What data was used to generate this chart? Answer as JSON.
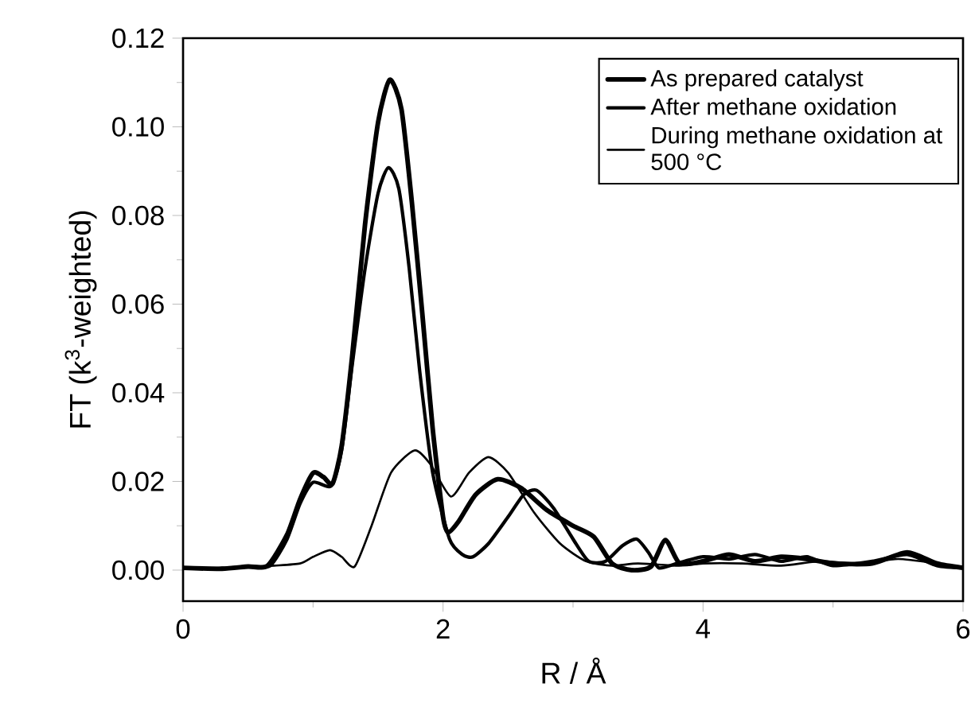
{
  "chart_data": {
    "type": "line",
    "xlabel": "R / Å",
    "ylabel": "FT (k$^{3}$-weighted)",
    "xlim": [
      0,
      6
    ],
    "ylim": [
      -0.007,
      0.12
    ],
    "xticks": [
      0,
      2,
      4,
      6
    ],
    "yticks": [
      {
        "value": 0,
        "label": "0.00"
      },
      {
        "value": 0.02,
        "label": "0.02"
      },
      {
        "value": 0.04,
        "label": "0.04"
      },
      {
        "value": 0.06,
        "label": "0.06"
      },
      {
        "value": 0.08,
        "label": "0.08"
      },
      {
        "value": 0.1,
        "label": "0.10"
      },
      {
        "value": 0.12,
        "label": "0.12"
      }
    ],
    "legend": "top right",
    "series": [
      {
        "name": "As prepared catalyst",
        "color": "#000000",
        "x": [
          0,
          0.3,
          0.5,
          0.65,
          0.8,
          0.9,
          1.0,
          1.08,
          1.15,
          1.22,
          1.3,
          1.4,
          1.5,
          1.59,
          1.68,
          1.76,
          1.84,
          1.92,
          2.0,
          2.04,
          2.12,
          2.25,
          2.42,
          2.6,
          2.8,
          3.0,
          3.16,
          3.3,
          3.45,
          3.6,
          3.71,
          3.82,
          4.0,
          4.2,
          4.4,
          4.6,
          4.8,
          5.0,
          5.3,
          5.57,
          5.8,
          6
        ],
        "values": [
          0.0005,
          0.0003,
          0.0008,
          0.001,
          0.008,
          0.016,
          0.0219,
          0.021,
          0.0195,
          0.028,
          0.048,
          0.078,
          0.101,
          0.1106,
          0.104,
          0.083,
          0.058,
          0.032,
          0.012,
          0.0085,
          0.011,
          0.017,
          0.0205,
          0.0185,
          0.0135,
          0.01,
          0.0075,
          0.0015,
          0.0,
          0.0008,
          0.0068,
          0.0015,
          0.002,
          0.0035,
          0.002,
          0.003,
          0.0025,
          0.0015,
          0.0015,
          0.004,
          0.0015,
          0.0005
        ]
      },
      {
        "name": "After methane oxidation",
        "color": "#000000",
        "x": [
          0,
          0.3,
          0.5,
          0.67,
          0.8,
          0.9,
          1.0,
          1.14,
          1.22,
          1.3,
          1.4,
          1.5,
          1.58,
          1.66,
          1.74,
          1.82,
          1.92,
          2.05,
          2.15,
          2.23,
          2.35,
          2.5,
          2.62,
          2.72,
          2.85,
          3.0,
          3.12,
          3.25,
          3.38,
          3.49,
          3.58,
          3.66,
          3.8,
          4.0,
          4.2,
          4.4,
          4.6,
          4.8,
          5.0,
          5.3,
          5.57,
          5.8,
          6
        ],
        "values": [
          0.0005,
          0.0004,
          0.0008,
          0.001,
          0.007,
          0.015,
          0.0198,
          0.019,
          0.027,
          0.046,
          0.068,
          0.085,
          0.0908,
          0.086,
          0.068,
          0.045,
          0.022,
          0.007,
          0.0035,
          0.003,
          0.006,
          0.012,
          0.017,
          0.018,
          0.014,
          0.007,
          0.002,
          0.002,
          0.0055,
          0.007,
          0.004,
          0.0005,
          0.0015,
          0.003,
          0.0025,
          0.0035,
          0.002,
          0.003,
          0.001,
          0.002,
          0.0035,
          0.001,
          0.0005
        ]
      },
      {
        "name": "During methane oxidation at 500 °C",
        "color": "#000000",
        "x": [
          0,
          0.4,
          0.7,
          0.9,
          1.0,
          1.13,
          1.22,
          1.32,
          1.45,
          1.6,
          1.78,
          1.9,
          2.06,
          2.2,
          2.35,
          2.5,
          2.7,
          2.9,
          3.1,
          3.3,
          3.5,
          3.8,
          4.0,
          4.3,
          4.6,
          4.9,
          5.2,
          5.5,
          5.8,
          6
        ],
        "values": [
          0.0005,
          0.0005,
          0.001,
          0.0015,
          0.003,
          0.0045,
          0.003,
          0.0008,
          0.01,
          0.022,
          0.027,
          0.024,
          0.0166,
          0.022,
          0.0255,
          0.022,
          0.013,
          0.006,
          0.002,
          0.001,
          0.0015,
          0.001,
          0.0015,
          0.0015,
          0.001,
          0.002,
          0.0015,
          0.0025,
          0.0015,
          0.0005
        ]
      }
    ]
  }
}
